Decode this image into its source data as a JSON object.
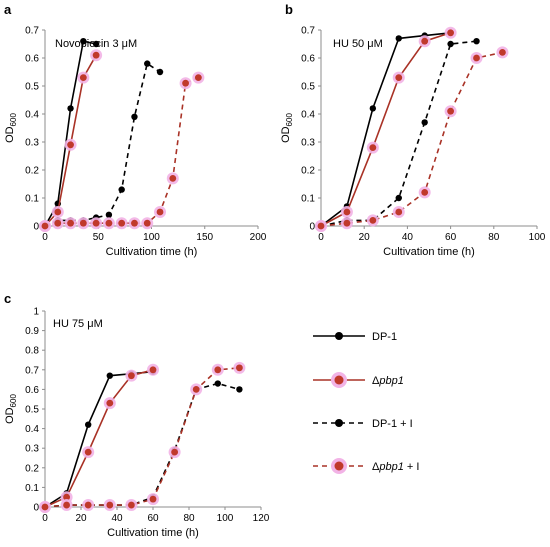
{
  "figure": {
    "x_tick_labels_ab": [
      "0",
      "50",
      "100",
      "150",
      "200"
    ],
    "x_tick_labels_b": [
      "0",
      "20",
      "40",
      "60",
      "80",
      "100"
    ],
    "x_tick_labels_c": [
      "0",
      "20",
      "40",
      "60",
      "80",
      "100",
      "120"
    ],
    "y_tick_labels": [
      "0",
      "0.1",
      "0.2",
      "0.3",
      "0.4",
      "0.5",
      "0.6",
      "0.7"
    ],
    "y_tick_labels_c": [
      "0",
      "0.1",
      "0.2",
      "0.3",
      "0.4",
      "0.5",
      "0.6",
      "0.7",
      "0.8",
      "0.9",
      "1"
    ]
  },
  "legend": {
    "entries": [
      {
        "label": "DP-1",
        "style": "solid",
        "color": "#000000"
      },
      {
        "label": "Δpbp1",
        "style": "solid",
        "color": "#c0392b"
      },
      {
        "label": "DP-1 + I",
        "style": "dashed",
        "color": "#000000"
      },
      {
        "label": "Δpbp1 + I",
        "style": "dashed",
        "color": "#c0392b"
      }
    ]
  },
  "chart_data": [
    {
      "panel": "a",
      "type": "line",
      "annotation": "Novobiocin 3  μM",
      "xlabel": "Cultivation time (h)",
      "ylabel": "OD600",
      "xlim": [
        0,
        200
      ],
      "ylim": [
        0,
        0.7
      ],
      "series": [
        {
          "name": "DP-1",
          "x": [
            0,
            12,
            24,
            36,
            48
          ],
          "y": [
            0.0,
            0.08,
            0.42,
            0.66,
            0.65
          ]
        },
        {
          "name": "Δpbp1",
          "x": [
            0,
            12,
            24,
            36,
            48
          ],
          "y": [
            0.0,
            0.05,
            0.29,
            0.53,
            0.61
          ]
        },
        {
          "name": "DP-1 + I",
          "x": [
            0,
            12,
            24,
            36,
            48,
            60,
            72,
            84,
            96,
            108
          ],
          "y": [
            0.0,
            0.02,
            0.02,
            0.02,
            0.03,
            0.04,
            0.13,
            0.39,
            0.58,
            0.55
          ]
        },
        {
          "name": "Δpbp1 + I",
          "x": [
            0,
            12,
            24,
            36,
            48,
            60,
            72,
            84,
            96,
            108,
            120,
            132,
            144
          ],
          "y": [
            0.0,
            0.01,
            0.01,
            0.01,
            0.01,
            0.01,
            0.01,
            0.01,
            0.01,
            0.05,
            0.17,
            0.51,
            0.53
          ]
        }
      ]
    },
    {
      "panel": "b",
      "type": "line",
      "annotation": "HU 50  μM",
      "xlabel": "Cultivation time (h)",
      "ylabel": "OD600",
      "xlim": [
        0,
        100
      ],
      "ylim": [
        0,
        0.7
      ],
      "series": [
        {
          "name": "DP-1",
          "x": [
            0,
            12,
            24,
            36,
            48,
            60
          ],
          "y": [
            0.0,
            0.07,
            0.42,
            0.67,
            0.68,
            0.69
          ]
        },
        {
          "name": "Δpbp1",
          "x": [
            0,
            12,
            24,
            36,
            48,
            60
          ],
          "y": [
            0.0,
            0.05,
            0.28,
            0.53,
            0.66,
            0.69
          ]
        },
        {
          "name": "DP-1 + I",
          "x": [
            0,
            12,
            24,
            36,
            48,
            60,
            72
          ],
          "y": [
            0.0,
            0.02,
            0.02,
            0.1,
            0.37,
            0.65,
            0.66
          ]
        },
        {
          "name": "Δpbp1 + I",
          "x": [
            0,
            12,
            24,
            36,
            48,
            60,
            72,
            84
          ],
          "y": [
            0.0,
            0.01,
            0.02,
            0.05,
            0.12,
            0.41,
            0.6,
            0.62
          ]
        }
      ]
    },
    {
      "panel": "c",
      "type": "line",
      "annotation": "HU 75  μM",
      "xlabel": "Cultivation time (h)",
      "ylabel": "OD600",
      "xlim": [
        0,
        120
      ],
      "ylim": [
        0,
        1
      ],
      "series": [
        {
          "name": "DP-1",
          "x": [
            0,
            12,
            24,
            36,
            48,
            60
          ],
          "y": [
            0.0,
            0.07,
            0.42,
            0.67,
            0.68,
            0.69
          ]
        },
        {
          "name": "Δpbp1",
          "x": [
            0,
            12,
            24,
            36,
            48,
            60
          ],
          "y": [
            0.0,
            0.05,
            0.28,
            0.53,
            0.67,
            0.7
          ]
        },
        {
          "name": "DP-1 + I",
          "x": [
            0,
            12,
            24,
            36,
            48,
            60,
            72,
            84,
            96,
            108
          ],
          "y": [
            0.0,
            0.01,
            0.01,
            0.01,
            0.01,
            0.05,
            0.29,
            0.6,
            0.63,
            0.6
          ]
        },
        {
          "name": "Δpbp1 + I",
          "x": [
            0,
            12,
            24,
            36,
            48,
            60,
            72,
            84,
            96,
            108
          ],
          "y": [
            0.0,
            0.01,
            0.01,
            0.01,
            0.01,
            0.04,
            0.28,
            0.6,
            0.7,
            0.71
          ]
        }
      ]
    }
  ]
}
